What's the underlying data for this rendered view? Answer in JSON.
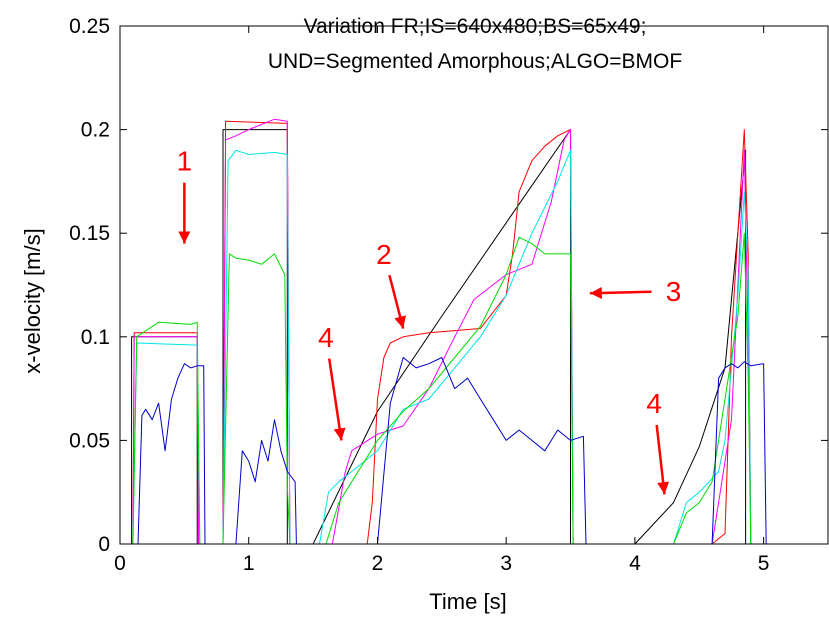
{
  "chart_data": {
    "type": "line",
    "title_lines": [
      "Variation FR;IS=640x480;BS=65x49;",
      "UND=Segmented Amorphous;ALGO=BMOF"
    ],
    "xlabel": "Time [s]",
    "ylabel": "x-velocity [m/s]",
    "xlim": [
      0,
      5.5
    ],
    "ylim": [
      0,
      0.25
    ],
    "xticks": [
      0,
      1,
      2,
      3,
      4,
      5
    ],
    "xtick_labels": [
      "0",
      "1",
      "2",
      "3",
      "4",
      "5"
    ],
    "yticks": [
      0,
      0.05,
      0.1,
      0.15,
      0.2,
      0.25
    ],
    "ytick_labels": [
      "0",
      "0.05",
      "0.1",
      "0.15",
      "0.2",
      "0.25"
    ],
    "grid": false,
    "legend": "none",
    "series": [
      {
        "color": "#000000",
        "x": [
          0,
          0.09,
          0.09,
          0.6,
          0.6,
          0.8,
          0.8,
          1.3,
          1.3,
          1.5,
          2.0,
          2.5,
          3.0,
          3.5,
          3.5,
          4.0,
          4.3,
          4.5,
          4.7,
          4.86,
          4.86,
          5.5
        ],
        "y": [
          0,
          0,
          0.1,
          0.1,
          0,
          0,
          0.2,
          0.2,
          0,
          0,
          0.064,
          0.11,
          0.155,
          0.2,
          0,
          0,
          0.02,
          0.047,
          0.085,
          0.19,
          0,
          0
        ]
      },
      {
        "color": "#ff0000",
        "x": [
          0,
          0.1,
          0.11,
          0.6,
          0.61,
          0.8,
          0.82,
          1.3,
          1.32,
          1.92,
          1.96,
          2.0,
          2.05,
          2.1,
          2.2,
          2.4,
          2.8,
          3.0,
          3.05,
          3.1,
          3.2,
          3.3,
          3.4,
          3.5,
          3.52,
          4.6,
          4.7,
          4.75,
          4.85,
          4.88,
          4.9,
          5.5
        ],
        "y": [
          0,
          0,
          0.102,
          0.102,
          0,
          0,
          0.204,
          0.203,
          0,
          0,
          0.02,
          0.07,
          0.09,
          0.097,
          0.1,
          0.102,
          0.104,
          0.12,
          0.14,
          0.17,
          0.185,
          0.192,
          0.197,
          0.2,
          0,
          0,
          0.005,
          0.1,
          0.2,
          0.14,
          0,
          0
        ]
      },
      {
        "color": "#ff00ff",
        "x": [
          0,
          0.1,
          0.11,
          0.6,
          0.61,
          0.8,
          0.82,
          0.9,
          1.0,
          1.2,
          1.3,
          1.32,
          1.65,
          1.75,
          1.8,
          2.0,
          2.2,
          2.4,
          2.6,
          2.75,
          3.0,
          3.2,
          3.35,
          3.45,
          3.5,
          3.52,
          4.6,
          4.65,
          4.75,
          4.85,
          4.88,
          4.9,
          5.5
        ],
        "y": [
          0,
          0,
          0.1,
          0.1,
          0,
          0,
          0.195,
          0.197,
          0.2,
          0.205,
          0.204,
          0,
          0,
          0.035,
          0.045,
          0.053,
          0.057,
          0.075,
          0.1,
          0.118,
          0.13,
          0.135,
          0.165,
          0.195,
          0.2,
          0,
          0,
          0.02,
          0.06,
          0.19,
          0.1,
          0,
          0
        ]
      },
      {
        "color": "#00e5e5",
        "x": [
          0,
          0.1,
          0.13,
          0.6,
          0.62,
          0.8,
          0.84,
          0.9,
          1.0,
          1.2,
          1.3,
          1.32,
          1.55,
          1.62,
          1.7,
          1.8,
          1.9,
          2.0,
          2.2,
          2.4,
          2.6,
          2.8,
          3.0,
          3.2,
          3.4,
          3.5,
          3.52,
          4.3,
          4.4,
          4.5,
          4.65,
          4.7,
          4.8,
          4.85,
          4.88,
          4.9,
          5.5
        ],
        "y": [
          0,
          0,
          0.097,
          0.096,
          0,
          0,
          0.185,
          0.19,
          0.188,
          0.189,
          0.188,
          0,
          0,
          0.025,
          0.03,
          0.035,
          0.04,
          0.045,
          0.065,
          0.07,
          0.085,
          0.1,
          0.12,
          0.15,
          0.175,
          0.19,
          0,
          0,
          0.02,
          0.025,
          0.035,
          0.05,
          0.12,
          0.17,
          0.13,
          0,
          0
        ]
      },
      {
        "color": "#00dd00",
        "x": [
          0,
          0.1,
          0.13,
          0.3,
          0.55,
          0.6,
          0.62,
          0.8,
          0.85,
          0.9,
          1.0,
          1.1,
          1.2,
          1.28,
          1.3,
          1.32,
          1.6,
          1.7,
          1.8,
          1.9,
          2.0,
          2.2,
          2.4,
          2.6,
          2.8,
          3.0,
          3.1,
          3.2,
          3.3,
          3.5,
          3.52,
          4.3,
          4.4,
          4.5,
          4.6,
          4.7,
          4.8,
          4.85,
          4.88,
          4.9,
          5.5
        ],
        "y": [
          0,
          0,
          0.1,
          0.107,
          0.106,
          0.107,
          0,
          0,
          0.14,
          0.138,
          0.137,
          0.135,
          0.14,
          0.13,
          0.028,
          0,
          0,
          0.02,
          0.03,
          0.04,
          0.05,
          0.064,
          0.075,
          0.09,
          0.105,
          0.13,
          0.148,
          0.145,
          0.14,
          0.14,
          0,
          0,
          0.015,
          0.02,
          0.03,
          0.07,
          0.11,
          0.15,
          0.08,
          0,
          0
        ]
      },
      {
        "color": "#0000cc",
        "x": [
          0,
          0.14,
          0.17,
          0.2,
          0.25,
          0.3,
          0.35,
          0.4,
          0.45,
          0.5,
          0.55,
          0.6,
          0.65,
          0.66,
          0.9,
          0.95,
          1.0,
          1.05,
          1.1,
          1.15,
          1.2,
          1.25,
          1.3,
          1.36,
          1.37,
          2.0,
          2.1,
          2.2,
          2.3,
          2.4,
          2.5,
          2.6,
          2.7,
          2.8,
          2.9,
          3.0,
          3.1,
          3.2,
          3.3,
          3.4,
          3.5,
          3.6,
          3.62,
          4.6,
          4.65,
          4.7,
          4.75,
          4.8,
          4.85,
          4.9,
          5.0,
          5.02,
          5.5
        ],
        "y": [
          0,
          0,
          0.062,
          0.065,
          0.06,
          0.068,
          0.045,
          0.07,
          0.08,
          0.087,
          0.085,
          0.086,
          0.086,
          0,
          0,
          0.045,
          0.04,
          0.03,
          0.05,
          0.04,
          0.06,
          0.045,
          0.035,
          0.03,
          0,
          0,
          0.068,
          0.09,
          0.085,
          0.087,
          0.09,
          0.075,
          0.08,
          0.07,
          0.06,
          0.05,
          0.055,
          0.05,
          0.045,
          0.055,
          0.05,
          0.052,
          0,
          0,
          0.08,
          0.085,
          0.087,
          0.085,
          0.088,
          0.086,
          0.087,
          0,
          0
        ]
      }
    ],
    "annotations": [
      {
        "label": "1",
        "x": 0.5,
        "y": 0.185,
        "arrow_to": [
          0.5,
          0.145
        ]
      },
      {
        "label": "2",
        "x": 2.05,
        "y": 0.14,
        "arrow_to": [
          2.2,
          0.104
        ]
      },
      {
        "label": "3",
        "x": 4.3,
        "y": 0.122,
        "arrow_to": [
          3.65,
          0.121
        ]
      },
      {
        "label": "4",
        "x": 1.6,
        "y": 0.1,
        "arrow_to": [
          1.72,
          0.05
        ]
      },
      {
        "label": "4",
        "x": 4.15,
        "y": 0.068,
        "arrow_to": [
          4.23,
          0.024
        ]
      }
    ]
  }
}
